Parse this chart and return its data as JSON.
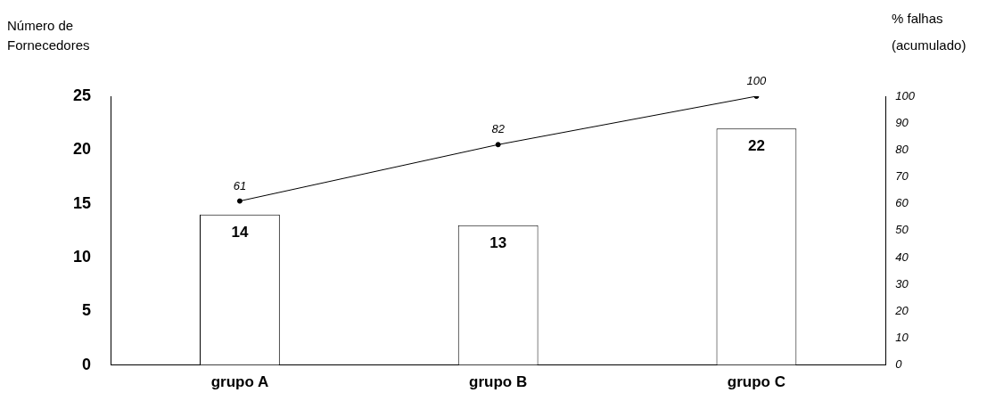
{
  "chart_data": {
    "type": "bar",
    "ylabel": "Número de Fornecedores",
    "y2label": "% falhas (acumulado)",
    "categories": [
      "grupo A",
      "grupo B",
      "grupo C"
    ],
    "series": [
      {
        "color": "#ffffff",
        "values": [
          14,
          13,
          22
        ]
      },
      {
        "type": "line",
        "axis": "y2",
        "color": "#000000",
        "values": [
          61,
          82,
          100
        ],
        "marker": "circle",
        "line_style": "solid"
      }
    ],
    "ylim": [
      0,
      25
    ],
    "yticks": [
      0,
      5,
      10,
      15,
      20,
      25
    ],
    "y2lim": [
      0,
      100
    ],
    "y2ticks": [
      0,
      10,
      20,
      30,
      40,
      50,
      60,
      70,
      80,
      90,
      100
    ],
    "data_labels": true,
    "grid": false,
    "legend": false
  }
}
